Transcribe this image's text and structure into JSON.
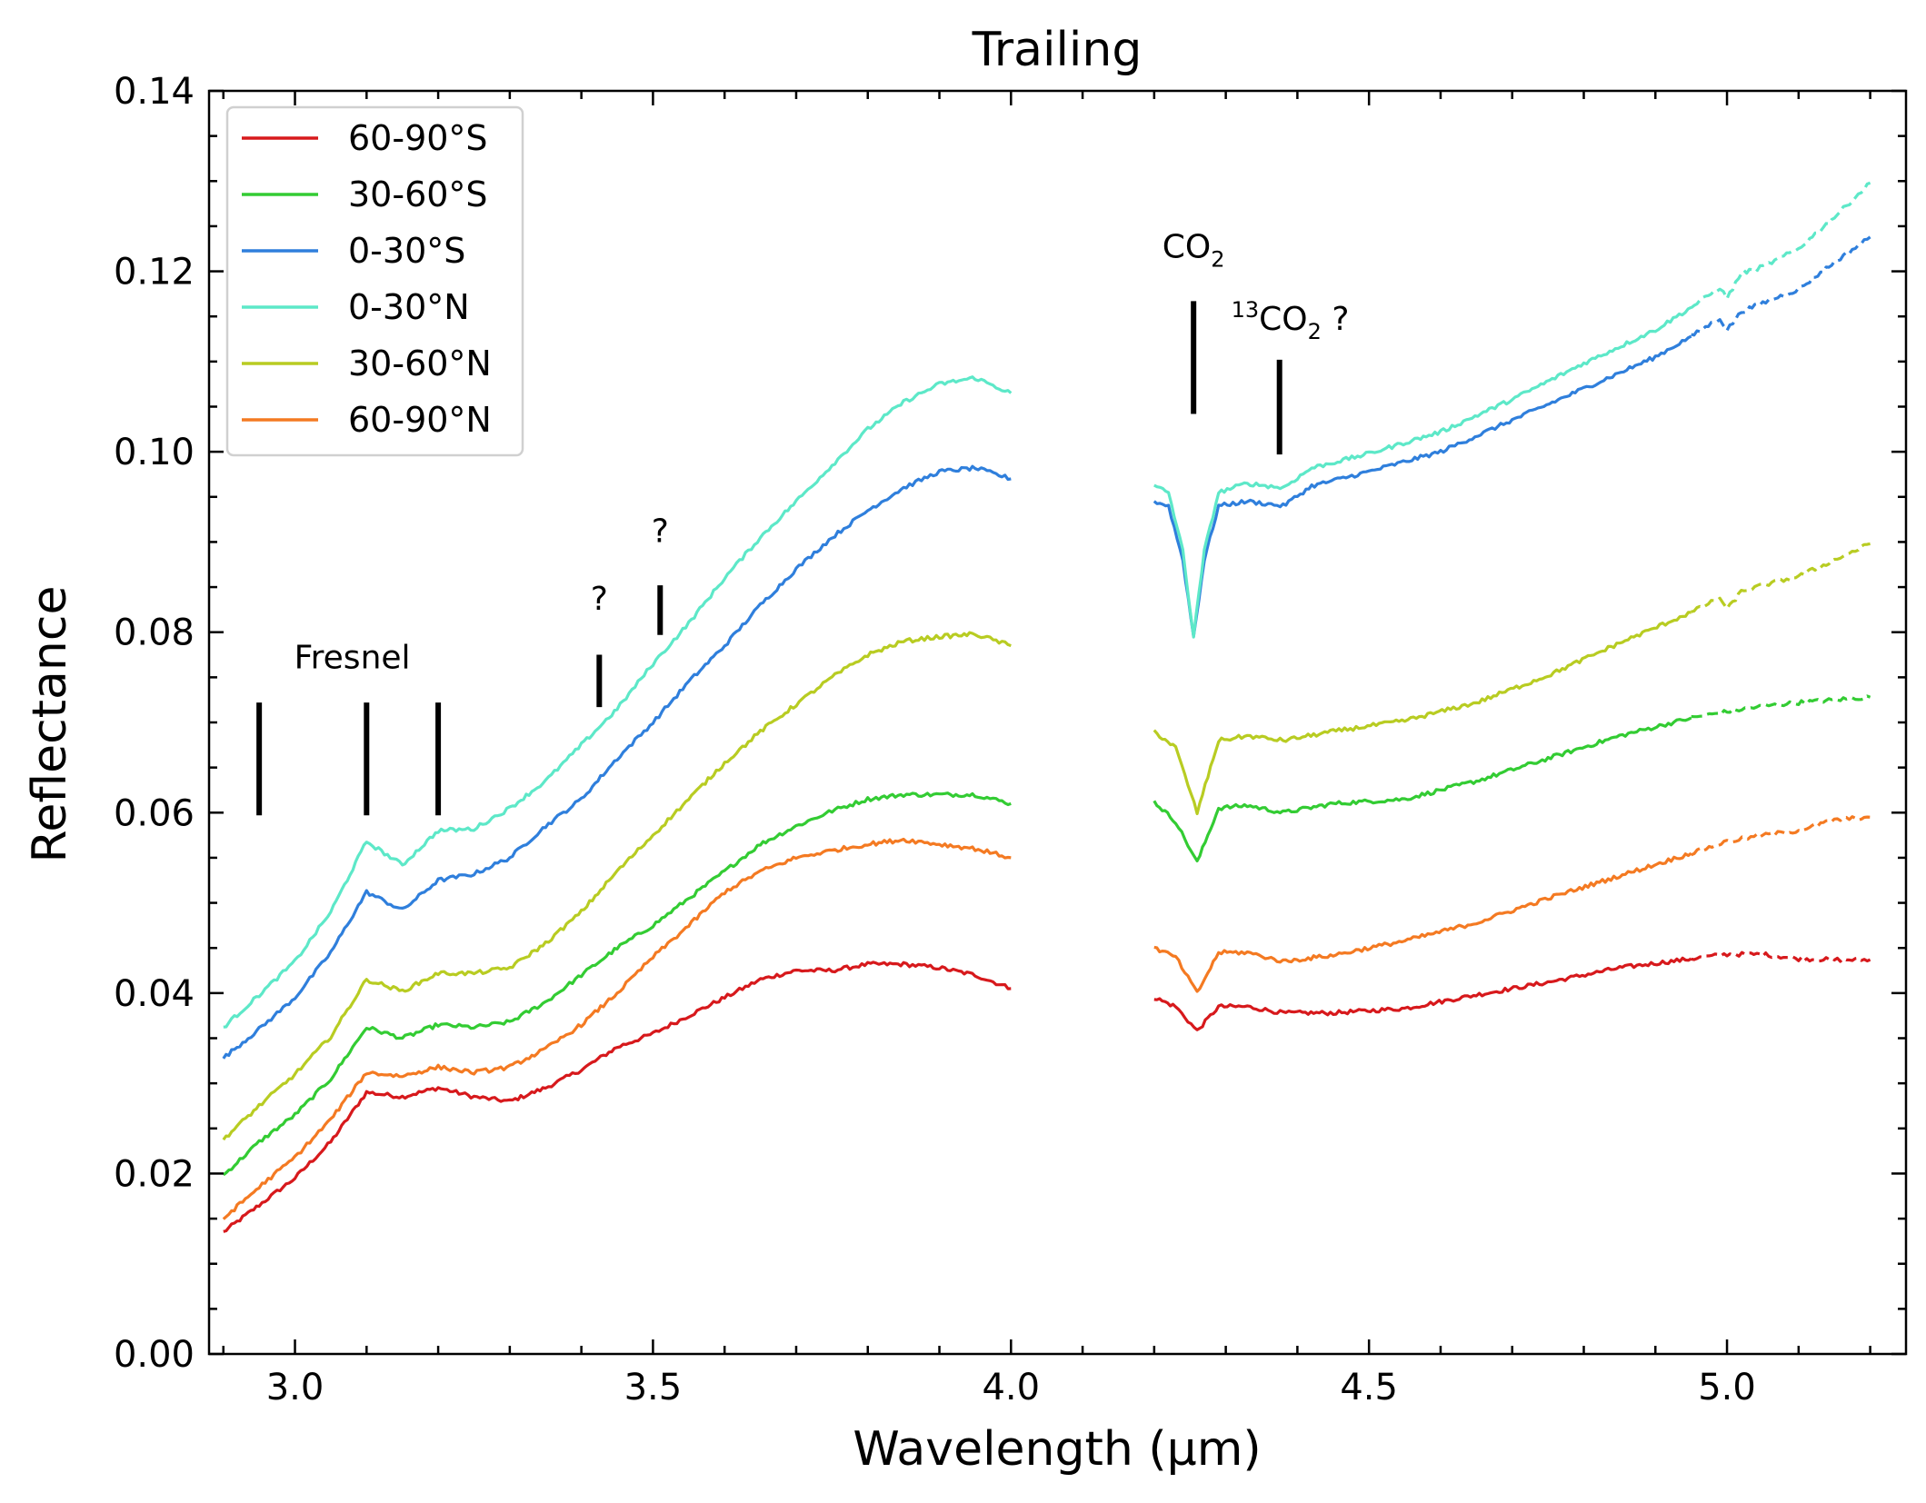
{
  "chart_data": {
    "type": "line",
    "title": "Trailing",
    "xlabel": "Wavelength (μm)",
    "ylabel": "Reflectance",
    "xlim": [
      2.88,
      5.25
    ],
    "ylim": [
      0.0,
      0.14
    ],
    "xticks": [
      3.0,
      3.5,
      4.0,
      4.5,
      5.0
    ],
    "xtick_labels": [
      "3.0",
      "3.5",
      "4.0",
      "4.5",
      "5.0"
    ],
    "yticks": [
      0.0,
      0.02,
      0.04,
      0.06,
      0.08,
      0.1,
      0.12,
      0.14
    ],
    "ytick_labels": [
      "0.00",
      "0.02",
      "0.04",
      "0.06",
      "0.08",
      "0.10",
      "0.12",
      "0.14"
    ],
    "legend_position": "upper-left",
    "series": [
      {
        "name": "60-90°S",
        "color": "#d7191c",
        "segment1": {
          "x": [
            2.9,
            2.95,
            3.0,
            3.05,
            3.1,
            3.15,
            3.2,
            3.25,
            3.3,
            3.35,
            3.4,
            3.45,
            3.5,
            3.55,
            3.6,
            3.65,
            3.7,
            3.75,
            3.8,
            3.85,
            3.9,
            3.95,
            4.0
          ],
          "y": [
            0.0135,
            0.0165,
            0.0195,
            0.0235,
            0.029,
            0.0285,
            0.0295,
            0.0285,
            0.028,
            0.0295,
            0.0315,
            0.034,
            0.0355,
            0.0375,
            0.0395,
            0.0415,
            0.0425,
            0.0425,
            0.0432,
            0.0432,
            0.0428,
            0.042,
            0.0405
          ]
        },
        "segment2": {
          "x": [
            4.2,
            4.23,
            4.26,
            4.29,
            4.33,
            4.38,
            4.45,
            4.55,
            4.65,
            4.75,
            4.85,
            4.95
          ],
          "y": [
            0.0395,
            0.0385,
            0.0358,
            0.0385,
            0.0385,
            0.0378,
            0.0378,
            0.0383,
            0.0398,
            0.0412,
            0.0428,
            0.0438
          ]
        },
        "segment3": {
          "x": [
            4.95,
            5.0,
            5.05,
            5.1,
            5.15,
            5.2
          ],
          "y": [
            0.0438,
            0.0443,
            0.0443,
            0.0438,
            0.0437,
            0.0437
          ]
        }
      },
      {
        "name": "30-60°S",
        "color": "#33cc33",
        "segment1": {
          "x": [
            2.9,
            2.95,
            3.0,
            3.05,
            3.1,
            3.15,
            3.2,
            3.25,
            3.3,
            3.35,
            3.4,
            3.45,
            3.5,
            3.55,
            3.6,
            3.65,
            3.7,
            3.75,
            3.8,
            3.85,
            3.9,
            3.95,
            4.0
          ],
          "y": [
            0.0198,
            0.0235,
            0.0265,
            0.0305,
            0.0362,
            0.035,
            0.0365,
            0.0362,
            0.0368,
            0.039,
            0.042,
            0.045,
            0.0475,
            0.0505,
            0.0535,
            0.0565,
            0.0585,
            0.0602,
            0.0615,
            0.062,
            0.062,
            0.062,
            0.061
          ]
        },
        "segment2": {
          "x": [
            4.2,
            4.23,
            4.26,
            4.29,
            4.33,
            4.38,
            4.45,
            4.55,
            4.65,
            4.75,
            4.85,
            4.95
          ],
          "y": [
            0.0612,
            0.059,
            0.0545,
            0.0605,
            0.0608,
            0.06,
            0.061,
            0.0615,
            0.0635,
            0.066,
            0.0685,
            0.0705
          ]
        },
        "segment3": {
          "x": [
            4.95,
            5.0,
            5.05,
            5.1,
            5.15,
            5.2
          ],
          "y": [
            0.0705,
            0.0712,
            0.0718,
            0.0722,
            0.0725,
            0.0728
          ]
        }
      },
      {
        "name": "0-30°S",
        "color": "#2f7fdc",
        "segment1": {
          "x": [
            2.9,
            2.95,
            3.0,
            3.05,
            3.1,
            3.15,
            3.2,
            3.25,
            3.3,
            3.35,
            3.4,
            3.45,
            3.5,
            3.55,
            3.6,
            3.65,
            3.7,
            3.75,
            3.8,
            3.85,
            3.9,
            3.95,
            4.0
          ],
          "y": [
            0.0328,
            0.036,
            0.0395,
            0.0445,
            0.0512,
            0.0492,
            0.0525,
            0.0532,
            0.055,
            0.0585,
            0.0615,
            0.066,
            0.07,
            0.0745,
            0.0785,
            0.083,
            0.087,
            0.0905,
            0.0935,
            0.096,
            0.0978,
            0.0982,
            0.097
          ]
        },
        "segment2": {
          "x": [
            4.2,
            4.22,
            4.24,
            4.255,
            4.27,
            4.29,
            4.33,
            4.38,
            4.42,
            4.5,
            4.6,
            4.7,
            4.8,
            4.9,
            4.95
          ],
          "y": [
            0.0945,
            0.094,
            0.088,
            0.0795,
            0.088,
            0.094,
            0.0945,
            0.094,
            0.0962,
            0.0978,
            0.1,
            0.1035,
            0.107,
            0.1105,
            0.1128
          ]
        },
        "segment3": {
          "x": [
            4.95,
            4.99,
            5.0,
            5.02,
            5.05,
            5.1,
            5.15,
            5.2
          ],
          "y": [
            0.1128,
            0.1148,
            0.1135,
            0.1155,
            0.1165,
            0.118,
            0.121,
            0.1238
          ]
        }
      },
      {
        "name": "0-30°N",
        "color": "#5de8c8",
        "segment1": {
          "x": [
            2.9,
            2.95,
            3.0,
            3.05,
            3.1,
            3.15,
            3.2,
            3.25,
            3.3,
            3.35,
            3.4,
            3.45,
            3.5,
            3.55,
            3.6,
            3.65,
            3.7,
            3.75,
            3.8,
            3.85,
            3.9,
            3.95,
            4.0
          ],
          "y": [
            0.0362,
            0.0398,
            0.0435,
            0.049,
            0.0568,
            0.0542,
            0.058,
            0.0582,
            0.0605,
            0.0635,
            0.0675,
            0.0715,
            0.0765,
            0.081,
            0.086,
            0.0905,
            0.0945,
            0.0985,
            0.1025,
            0.1055,
            0.1075,
            0.1082,
            0.1065
          ]
        },
        "segment2": {
          "x": [
            4.2,
            4.22,
            4.24,
            4.255,
            4.27,
            4.29,
            4.33,
            4.38,
            4.42,
            4.5,
            4.6,
            4.7,
            4.8,
            4.9,
            4.95
          ],
          "y": [
            0.0962,
            0.0955,
            0.089,
            0.0795,
            0.089,
            0.0955,
            0.0965,
            0.096,
            0.0982,
            0.0998,
            0.1022,
            0.1058,
            0.1098,
            0.1135,
            0.116
          ]
        },
        "segment3": {
          "x": [
            4.95,
            4.99,
            5.0,
            5.02,
            5.05,
            5.1,
            5.15,
            5.2
          ],
          "y": [
            0.116,
            0.1182,
            0.117,
            0.1198,
            0.1205,
            0.1225,
            0.126,
            0.1298
          ]
        }
      },
      {
        "name": "30-60°N",
        "color": "#b8cc22",
        "segment1": {
          "x": [
            2.9,
            2.95,
            3.0,
            3.05,
            3.1,
            3.15,
            3.2,
            3.25,
            3.3,
            3.35,
            3.4,
            3.45,
            3.5,
            3.55,
            3.6,
            3.65,
            3.7,
            3.75,
            3.8,
            3.85,
            3.9,
            3.95,
            4.0
          ],
          "y": [
            0.0238,
            0.0275,
            0.031,
            0.0352,
            0.0415,
            0.0402,
            0.0422,
            0.0422,
            0.0428,
            0.0455,
            0.049,
            0.0535,
            0.0575,
            0.0615,
            0.0655,
            0.069,
            0.072,
            0.075,
            0.0775,
            0.079,
            0.0795,
            0.0798,
            0.0785
          ]
        },
        "segment2": {
          "x": [
            4.2,
            4.23,
            4.26,
            4.29,
            4.33,
            4.38,
            4.45,
            4.55,
            4.65,
            4.75,
            4.85,
            4.95
          ],
          "y": [
            0.069,
            0.0672,
            0.06,
            0.068,
            0.0685,
            0.068,
            0.069,
            0.0702,
            0.0722,
            0.0752,
            0.0788,
            0.0822
          ]
        },
        "segment3": {
          "x": [
            4.95,
            4.99,
            5.0,
            5.02,
            5.05,
            5.1,
            5.15,
            5.2
          ],
          "y": [
            0.0822,
            0.0838,
            0.0825,
            0.0845,
            0.0852,
            0.0862,
            0.088,
            0.0898
          ]
        }
      },
      {
        "name": "60-90°N",
        "color": "#f47a22",
        "segment1": {
          "x": [
            2.9,
            2.95,
            3.0,
            3.05,
            3.1,
            3.15,
            3.2,
            3.25,
            3.3,
            3.35,
            3.4,
            3.45,
            3.5,
            3.55,
            3.6,
            3.65,
            3.7,
            3.75,
            3.8,
            3.85,
            3.9,
            3.95,
            4.0
          ],
          "y": [
            0.015,
            0.0185,
            0.0218,
            0.026,
            0.0312,
            0.0308,
            0.0318,
            0.0312,
            0.0318,
            0.0338,
            0.0365,
            0.04,
            0.044,
            0.0475,
            0.0512,
            0.0535,
            0.055,
            0.0558,
            0.0565,
            0.057,
            0.0565,
            0.056,
            0.055
          ]
        },
        "segment2": {
          "x": [
            4.2,
            4.23,
            4.26,
            4.29,
            4.33,
            4.38,
            4.45,
            4.55,
            4.65,
            4.75,
            4.85,
            4.95
          ],
          "y": [
            0.045,
            0.044,
            0.04,
            0.0445,
            0.0445,
            0.0435,
            0.0442,
            0.0458,
            0.0478,
            0.0505,
            0.053,
            0.0555
          ]
        },
        "segment3": {
          "x": [
            4.95,
            5.0,
            5.05,
            5.1,
            5.15,
            5.2
          ],
          "y": [
            0.0555,
            0.0568,
            0.0575,
            0.058,
            0.0592,
            0.0595
          ]
        }
      }
    ],
    "annotations": [
      {
        "kind": "fresnel",
        "label": "Fresnel",
        "label_x": 3.08,
        "label_y": 0.076,
        "marks": [
          {
            "x": 2.95,
            "y0": 0.0597,
            "y1": 0.0722
          },
          {
            "x": 3.1,
            "y0": 0.0597,
            "y1": 0.0722
          },
          {
            "x": 3.2,
            "y0": 0.0597,
            "y1": 0.0722
          }
        ]
      },
      {
        "kind": "unknown1",
        "label": "?",
        "label_x": 3.425,
        "label_y": 0.0825,
        "marks": [
          {
            "x": 3.425,
            "y0": 0.0717,
            "y1": 0.0775
          }
        ]
      },
      {
        "kind": "unknown2",
        "label": "?",
        "label_x": 3.51,
        "label_y": 0.09,
        "marks": [
          {
            "x": 3.51,
            "y0": 0.0797,
            "y1": 0.0852
          }
        ]
      },
      {
        "kind": "co2",
        "label": "CO",
        "sub": "2",
        "label_x": 4.255,
        "label_y": 0.1215,
        "marks": [
          {
            "x": 4.255,
            "y0": 0.1042,
            "y1": 0.1167
          }
        ]
      },
      {
        "kind": "c13o2",
        "sup": "13",
        "label": "CO",
        "sub": "2",
        "suffix": " ?",
        "label_x": 4.39,
        "label_y": 0.1135,
        "marks": [
          {
            "x": 4.375,
            "y0": 0.0997,
            "y1": 0.1102
          }
        ]
      }
    ]
  }
}
